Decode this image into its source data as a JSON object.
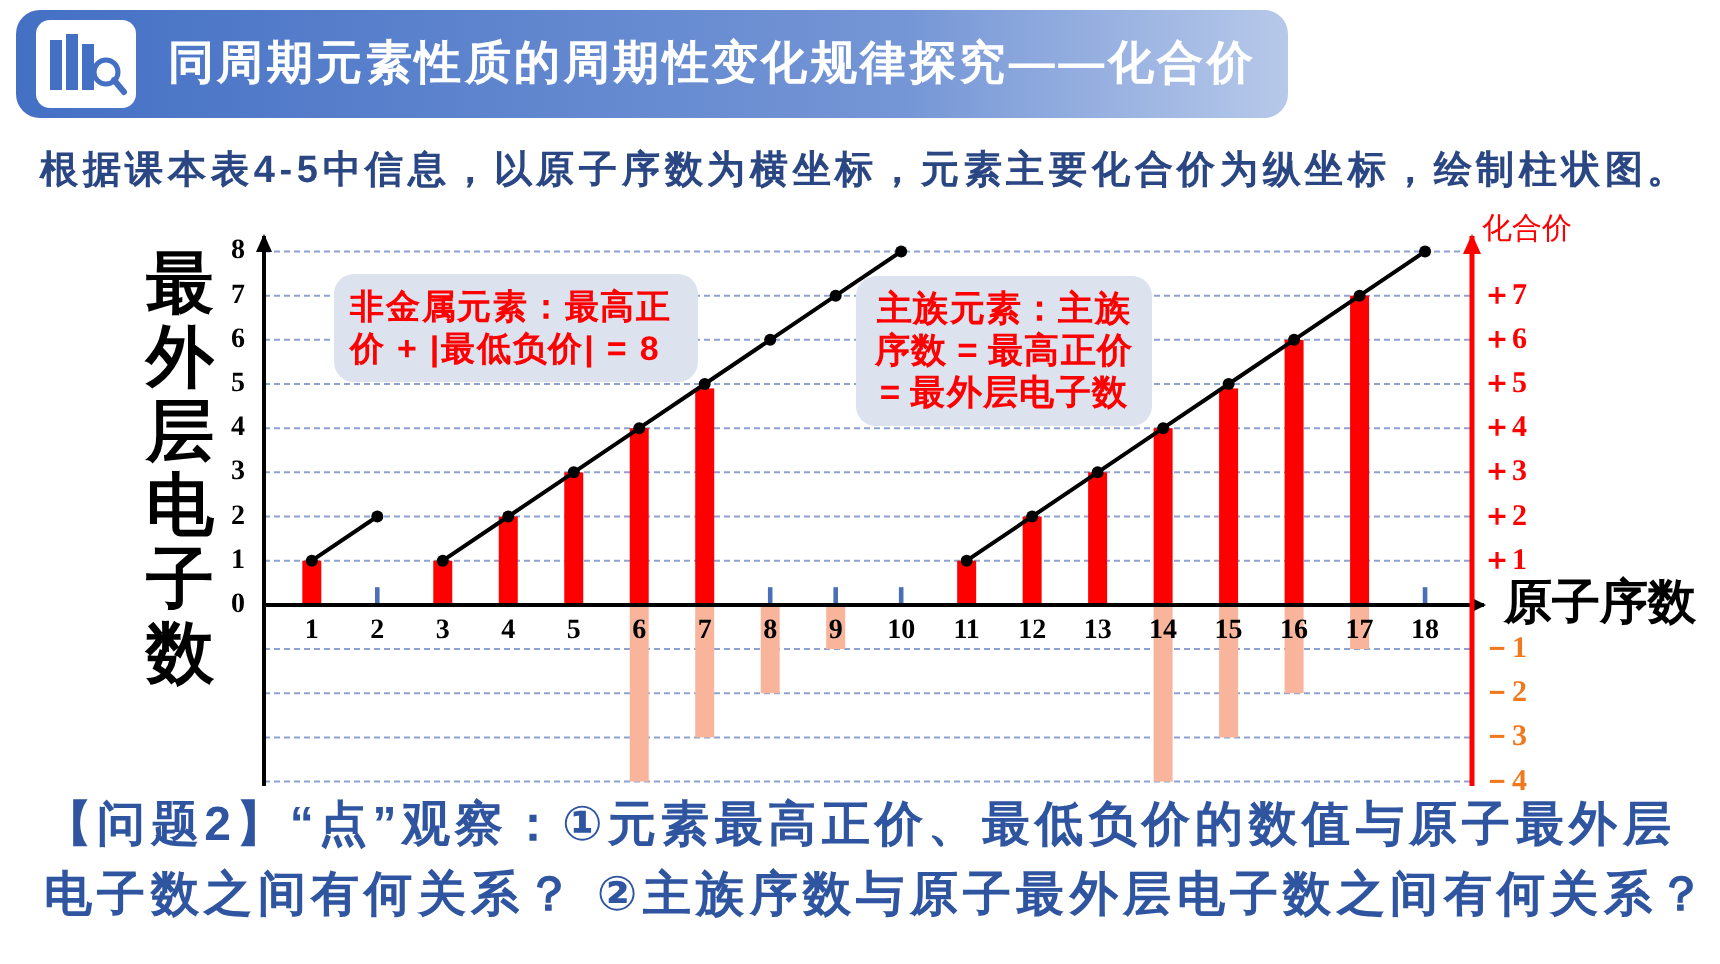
{
  "chart_data": {
    "type": "bar",
    "title": "同周期元素性质的周期性变化规律探究——化合价",
    "subtitle": "根据课本表4-5中信息，以原子序数为横坐标，元素主要化合价为纵坐标，绘制柱状图。",
    "xlabel": "原子序数",
    "ylabel": "最外层电子数",
    "y2label": "化合价",
    "x": [
      1,
      2,
      3,
      4,
      5,
      6,
      7,
      8,
      9,
      10,
      11,
      12,
      13,
      14,
      15,
      16,
      17,
      18
    ],
    "xlim": [
      0.27,
      18.9
    ],
    "xticks": [
      1,
      2,
      3,
      4,
      5,
      6,
      7,
      8,
      9,
      10,
      11,
      12,
      13,
      14,
      15,
      16,
      17,
      18
    ],
    "ylim": [
      -4.1,
      8.35
    ],
    "yticks": [
      {
        "value": -4,
        "label": null
      },
      {
        "value": -3,
        "label": null
      },
      {
        "value": -2,
        "label": null
      },
      {
        "value": -1,
        "label": null
      },
      0,
      1,
      2,
      3,
      4,
      5,
      6,
      7,
      8
    ],
    "y2lim": [
      -4.1,
      8.35
    ],
    "y2ticks": [
      {
        "value": -4,
        "label": "－4"
      },
      {
        "value": -3,
        "label": "－3"
      },
      {
        "value": -2,
        "label": "－2"
      },
      {
        "value": -1,
        "label": "－1"
      },
      {
        "value": 1,
        "label": "＋1"
      },
      {
        "value": 2,
        "label": "＋2"
      },
      {
        "value": 3,
        "label": "＋3"
      },
      {
        "value": 4,
        "label": "＋4"
      },
      {
        "value": 5,
        "label": "＋5"
      },
      {
        "value": 6,
        "label": "＋6"
      },
      {
        "value": 7,
        "label": "＋7"
      }
    ],
    "grid": "y",
    "marker": "circle",
    "line_style": "solid",
    "series": [
      {
        "color": "#ff0000",
        "values": [
          1,
          null,
          1,
          2,
          3,
          4,
          4.9,
          null,
          null,
          null,
          1,
          2,
          3,
          4,
          4.9,
          6,
          7,
          null
        ]
      },
      {
        "color": "#f8b59b",
        "values": [
          null,
          null,
          null,
          null,
          null,
          -4,
          -3,
          -2,
          -1,
          null,
          null,
          null,
          null,
          -4,
          -3,
          -2,
          -1,
          null
        ]
      },
      {
        "color": "#4a6fb8",
        "values": [
          null,
          0.4,
          null,
          null,
          null,
          null,
          null,
          0.4,
          0.4,
          0.4,
          null,
          null,
          null,
          null,
          null,
          null,
          null,
          0.4
        ]
      },
      {
        "type": "line",
        "color": "#000000",
        "x": [
          1,
          2
        ],
        "values": [
          1,
          2
        ]
      },
      {
        "type": "line",
        "color": "#000000",
        "x": [
          3,
          4,
          5,
          6,
          7,
          8,
          9,
          10
        ],
        "values": [
          1,
          2,
          3,
          4,
          5,
          6,
          7,
          8
        ]
      },
      {
        "type": "line",
        "color": "#000000",
        "x": [
          11,
          12,
          13,
          14,
          15,
          16,
          17,
          18
        ],
        "values": [
          1,
          2,
          3,
          4,
          5,
          6,
          7,
          8
        ]
      }
    ],
    "annotations": [
      "非金属元素：最高正价 + |最低负价| = 8",
      "主族元素：主族序数 = 最高正价 = 最外层电子数",
      "【问题2】“点”观察：①元素最高正价、最低负价的数值与原子最外层电子数之间有何关系？  ②主族序数与原子最外层电子数之间有何关系？"
    ]
  }
}
